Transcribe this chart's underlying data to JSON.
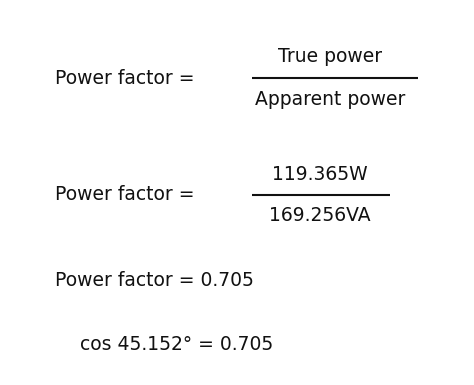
{
  "bg_color": "#ffffff",
  "text_color": "#111111",
  "line1_left": "Power factor = ",
  "line1_numerator": "True power",
  "line1_denominator": "Apparent power",
  "line2_left": "Power factor = ",
  "line2_numerator": "119.365W",
  "line2_denominator": "169.256VA",
  "line3": "Power factor = 0.705",
  "line4": "cos 45.152° = 0.705",
  "font_size": 13.5,
  "fraction_bar_color": "#111111",
  "fig_width": 4.74,
  "fig_height": 3.85,
  "dpi": 100
}
